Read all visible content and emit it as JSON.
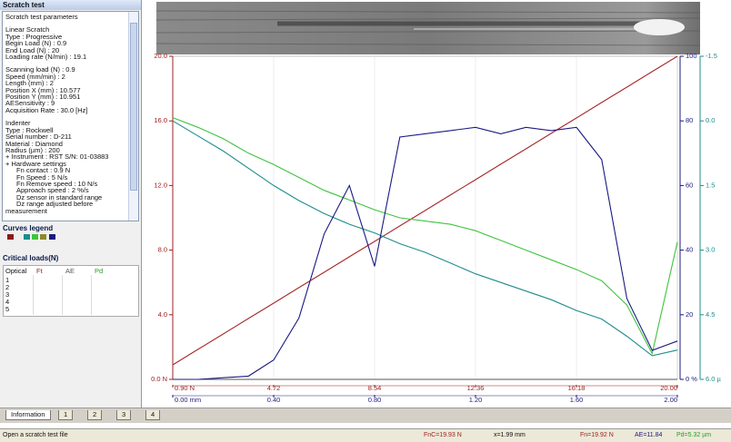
{
  "panel": {
    "title": "Scratch test",
    "sections": [
      [
        "Scratch test parameters"
      ],
      [
        "Linear Scratch",
        "Type : Progressive",
        "Begin Load (N) : 0.9",
        "End Load (N) : 20",
        "Loading rate (N/min) : 19.1"
      ],
      [
        "Scanning load (N) : 0.9",
        "Speed (mm/min) : 2",
        "Length (mm) : 2",
        "Position X (mm) : 10.577",
        "Position Y (mm) : 10.951",
        "AESensitivity : 9",
        "Acquisition Rate : 30.0 [Hz]"
      ],
      [
        "Indenter",
        "Type : Rockwell",
        "Serial number : D-211",
        "Material : Diamond",
        "Radius (µm) : 200",
        "+ Instrument : RST S/N: 01-03883",
        "+ Hardware settings",
        "Fn contact : 0.9 N",
        "Fn Speed : 5 N/s",
        "Fn Remove speed : 10 N/s",
        "Approach speed : 2 %/s",
        "Dz sensor in standard range",
        "Dz range adjusted before",
        "measurement"
      ]
    ],
    "legend_title": "Curves legend",
    "critical_title": "Critical loads(N)",
    "critical_headers": [
      "Optical",
      "Ft",
      "AE",
      "Pd"
    ],
    "critical_rows": [
      "1",
      "2",
      "3",
      "4",
      "5"
    ]
  },
  "chart_data": {
    "type": "line",
    "x": [
      0,
      0.1,
      0.2,
      0.3,
      0.4,
      0.5,
      0.6,
      0.7,
      0.8,
      0.9,
      1.0,
      1.1,
      1.2,
      1.3,
      1.4,
      1.5,
      1.6,
      1.7,
      1.8,
      1.9,
      2.0
    ],
    "xlim": [
      0,
      2
    ],
    "xticks": [
      {
        "value": 0,
        "label": "0.00 mm"
      },
      {
        "value": 0.4,
        "label": "0.40"
      },
      {
        "value": 0.8,
        "label": "0.80"
      },
      {
        "value": 1.2,
        "label": "1.20"
      },
      {
        "value": 1.6,
        "label": "1.60"
      },
      {
        "value": 2,
        "label": "2.00"
      }
    ],
    "x2lim": [
      0.9,
      20
    ],
    "x2ticks": [
      {
        "value": 0.9,
        "label": "0.90 N"
      },
      4.72,
      8.54,
      12.36,
      16.18,
      {
        "value": 20,
        "label": "20.00"
      }
    ],
    "ylim": [
      0,
      20
    ],
    "yticks": [
      {
        "value": 0,
        "label": "0.0 N"
      },
      {
        "value": 4,
        "label": "4.0"
      },
      {
        "value": 8,
        "label": "8.0"
      },
      {
        "value": 12,
        "label": "12.0"
      },
      {
        "value": 16,
        "label": "16.0"
      },
      {
        "value": 20,
        "label": "20.0"
      }
    ],
    "y2lim": [
      0,
      100
    ],
    "y2ticks": [
      {
        "value": 0,
        "label": "0 %"
      },
      20,
      40,
      60,
      80,
      100
    ],
    "y3lim": [
      6,
      -1.5
    ],
    "y3ticks": [
      {
        "value": 6,
        "label": "6.0 µ"
      },
      4.5,
      {
        "value": 3,
        "label": "3.0"
      },
      1.5,
      {
        "value": 0,
        "label": "0.0"
      },
      -1.5
    ],
    "grid": "x",
    "axis_colors": {
      "y": "#a02020",
      "y2": "#1a1a80",
      "y3": "#1e8c8c",
      "x2": "#a02020",
      "x": "#1a1a80"
    },
    "series": [
      {
        "color": "#a52a2a",
        "axis": "y",
        "values": [
          0.9,
          1.86,
          2.81,
          3.77,
          4.72,
          5.68,
          6.63,
          7.59,
          8.54,
          9.5,
          10.45,
          11.41,
          12.36,
          13.32,
          14.27,
          15.23,
          16.18,
          17.14,
          18.09,
          19.05,
          20.0
        ]
      },
      {
        "color": "#3ec43e",
        "axis": "y",
        "values": [
          16.2,
          15.6,
          14.9,
          14.0,
          13.3,
          12.5,
          11.7,
          11.1,
          10.5,
          10.0,
          9.8,
          9.6,
          9.2,
          8.6,
          8.0,
          7.4,
          6.8,
          6.1,
          4.6,
          1.6,
          8.5
        ]
      },
      {
        "color": "#1e8c8c",
        "axis": "y3",
        "values": [
          0.0,
          0.35,
          0.7,
          1.1,
          1.5,
          1.85,
          2.15,
          2.4,
          2.6,
          2.85,
          3.05,
          3.3,
          3.55,
          3.75,
          3.95,
          4.15,
          4.4,
          4.6,
          5.0,
          5.45,
          5.32
        ]
      },
      {
        "color": "#1a1a80",
        "axis": "y2",
        "values": [
          0,
          0,
          0.5,
          1,
          6,
          19,
          45,
          60,
          35,
          75,
          76,
          77,
          78,
          76,
          78,
          77,
          78,
          68,
          25,
          9,
          11.84
        ]
      }
    ]
  },
  "tabs": [
    "Information",
    "1",
    "2",
    "3",
    "4"
  ],
  "status": {
    "message": "Open a scratch test file",
    "fnc": "FnC=19.93 N",
    "x": "x=1.99 mm",
    "fn": "Fn=19.92 N",
    "ae": "AE=11.84",
    "pd": "Pd=5.32 µm"
  }
}
